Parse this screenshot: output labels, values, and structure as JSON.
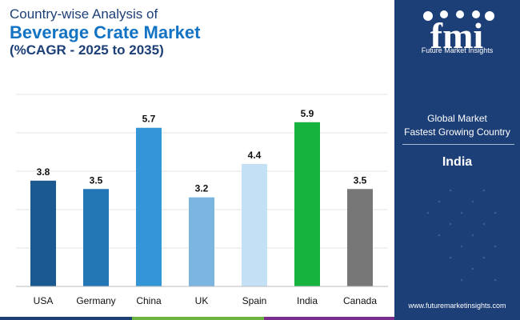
{
  "title": {
    "line1": "Country-wise Analysis of",
    "line2": "Beverage Crate Market",
    "line3": "(%CAGR - 2025 to 2035)"
  },
  "chart_data": {
    "type": "bar",
    "title": "Country-wise Analysis of Beverage Crate Market (%CAGR - 2025 to 2035)",
    "categories": [
      "USA",
      "Germany",
      "China",
      "UK",
      "Spain",
      "India",
      "Canada"
    ],
    "values": [
      3.8,
      3.5,
      5.7,
      3.2,
      4.4,
      5.9,
      3.5
    ],
    "value_labels": [
      "3.8",
      "3.5",
      "5.7",
      "3.2",
      "4.4",
      "5.9",
      "3.5"
    ],
    "colors": [
      "#1a5a90",
      "#2376b6",
      "#3496d6",
      "#7cb6e0",
      "#c3e0f5",
      "#16b33e",
      "#777777"
    ],
    "xlabel": "",
    "ylabel": "",
    "ylim": [
      0,
      6.9
    ],
    "grid": true
  },
  "sidebar": {
    "logo_text": "fmi",
    "logo_subtitle": "Future Market Insights",
    "label_line1": "Global Market",
    "label_line2": "Fastest Growing Country",
    "country": "India",
    "url": "www.futuremarketinsights.com"
  },
  "colors": {
    "navy": "#1d3f78",
    "accent_blue": "#1273c5",
    "band_blue": "#1d3f78",
    "band_green": "#6db33f",
    "band_purple": "#7b2d8e"
  }
}
